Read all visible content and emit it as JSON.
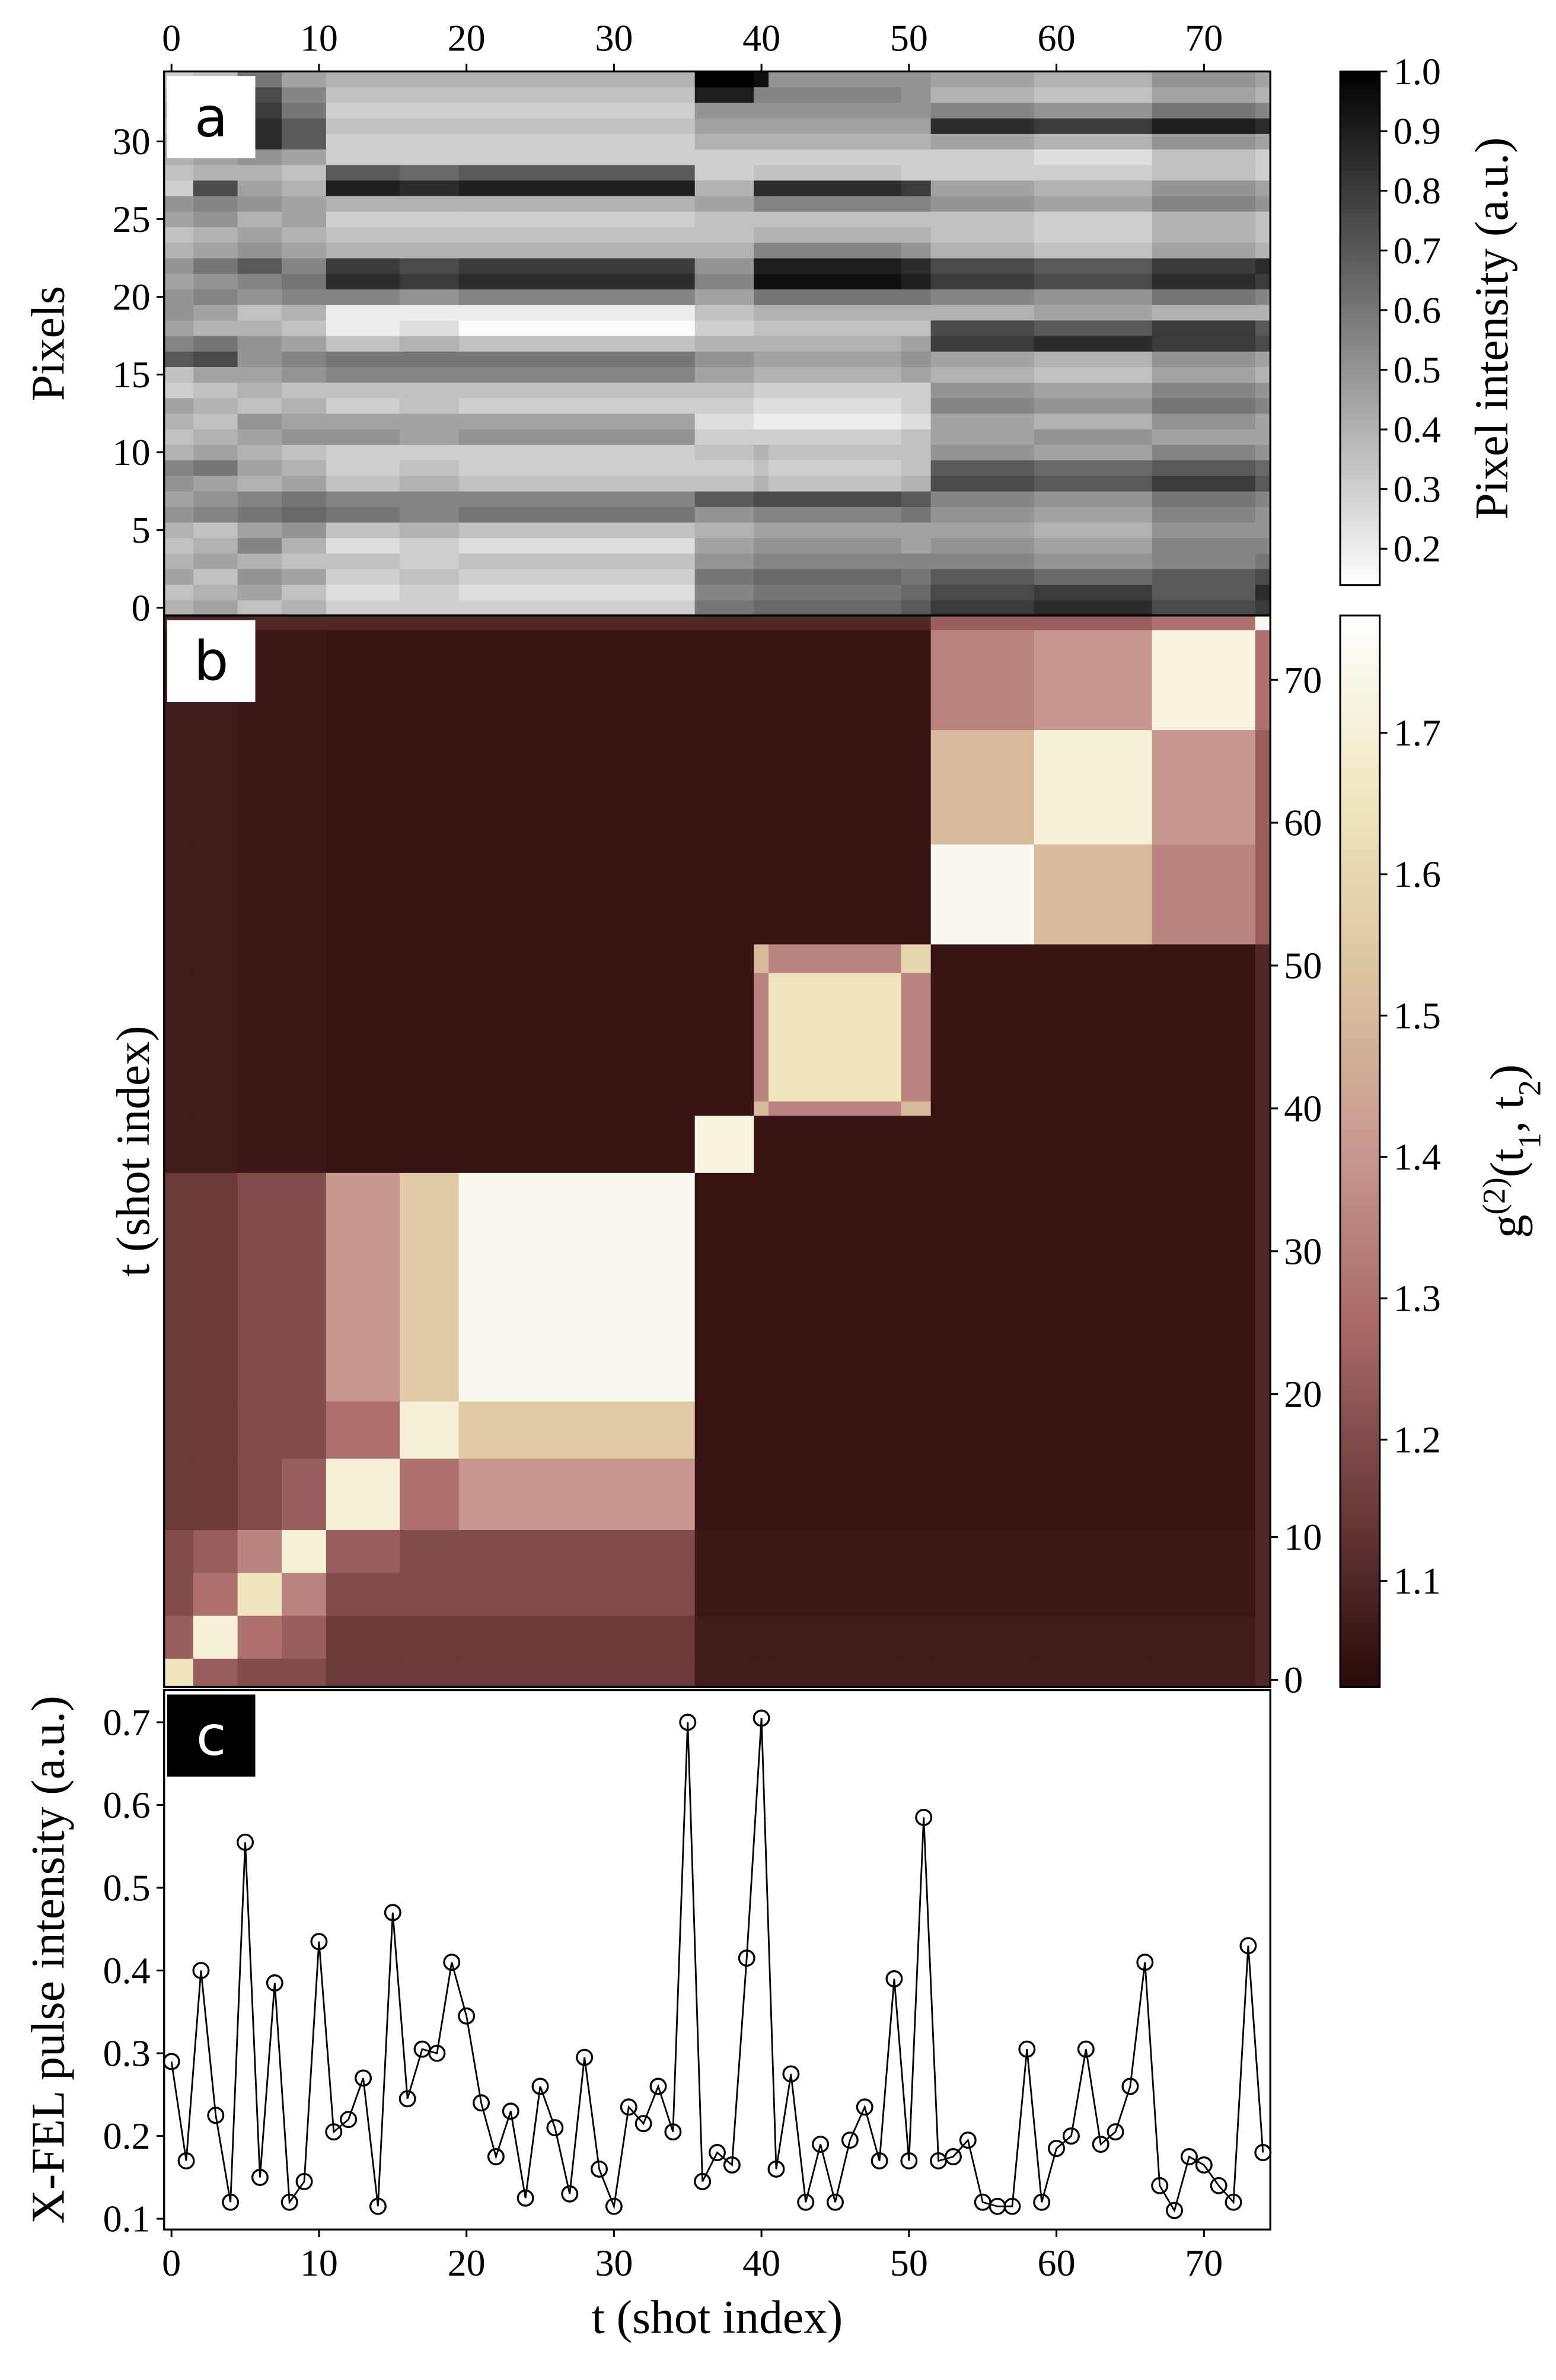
{
  "chart_data": [
    {
      "type": "heatmap",
      "panel_label": "a",
      "ylabel": "Pixels",
      "x_axis_position": "top",
      "y_axis_position": "left",
      "xlim": [
        -0.5,
        74.5
      ],
      "ylim": [
        -0.5,
        34.5
      ],
      "xticks": [
        0,
        10,
        20,
        30,
        40,
        50,
        60,
        70
      ],
      "yticks": [
        0,
        5,
        10,
        15,
        20,
        25,
        30
      ],
      "x_edges": [
        -0.5,
        1.5,
        4.5,
        7.5,
        10.5,
        15.5,
        19.5,
        35.5,
        39.5,
        40.5,
        49.5,
        51.5,
        58.5,
        66.5,
        73.5,
        74.5
      ],
      "y_edges": [
        -0.5,
        0.5,
        1.5,
        2.5,
        3.5,
        4.5,
        5.5,
        6.5,
        7.5,
        8.5,
        9.5,
        10.5,
        11.5,
        12.5,
        13.5,
        14.5,
        15.5,
        16.5,
        17.5,
        18.5,
        19.5,
        20.5,
        21.5,
        22.5,
        23.5,
        24.5,
        25.5,
        26.5,
        27.5,
        28.5,
        29.5,
        30.5,
        31.5,
        32.5,
        33.5,
        34.5
      ],
      "values": [
        [
          0.4,
          0.45,
          0.35,
          0.4,
          0.3,
          0.3,
          0.3,
          0.6,
          0.65,
          0.65,
          0.7,
          0.8,
          0.85,
          0.75,
          0.8
        ],
        [
          0.35,
          0.4,
          0.45,
          0.35,
          0.25,
          0.3,
          0.25,
          0.55,
          0.6,
          0.6,
          0.65,
          0.75,
          0.8,
          0.7,
          0.85
        ],
        [
          0.45,
          0.35,
          0.5,
          0.45,
          0.3,
          0.35,
          0.3,
          0.6,
          0.65,
          0.65,
          0.6,
          0.7,
          0.65,
          0.7,
          0.75
        ],
        [
          0.4,
          0.45,
          0.4,
          0.35,
          0.35,
          0.3,
          0.35,
          0.5,
          0.55,
          0.55,
          0.55,
          0.55,
          0.5,
          0.55,
          0.6
        ],
        [
          0.35,
          0.4,
          0.55,
          0.4,
          0.25,
          0.3,
          0.25,
          0.45,
          0.5,
          0.5,
          0.45,
          0.5,
          0.45,
          0.55,
          0.55
        ],
        [
          0.4,
          0.35,
          0.45,
          0.5,
          0.35,
          0.4,
          0.35,
          0.4,
          0.45,
          0.45,
          0.45,
          0.45,
          0.4,
          0.5,
          0.5
        ],
        [
          0.5,
          0.55,
          0.6,
          0.65,
          0.6,
          0.55,
          0.6,
          0.5,
          0.55,
          0.55,
          0.6,
          0.5,
          0.45,
          0.55,
          0.5
        ],
        [
          0.45,
          0.5,
          0.55,
          0.6,
          0.55,
          0.55,
          0.55,
          0.7,
          0.75,
          0.75,
          0.7,
          0.55,
          0.5,
          0.6,
          0.55
        ],
        [
          0.5,
          0.45,
          0.4,
          0.45,
          0.35,
          0.4,
          0.35,
          0.35,
          0.4,
          0.35,
          0.4,
          0.75,
          0.7,
          0.8,
          0.7
        ],
        [
          0.55,
          0.6,
          0.45,
          0.4,
          0.3,
          0.35,
          0.3,
          0.3,
          0.35,
          0.3,
          0.35,
          0.7,
          0.65,
          0.7,
          0.65
        ],
        [
          0.4,
          0.45,
          0.4,
          0.35,
          0.3,
          0.3,
          0.3,
          0.35,
          0.4,
          0.35,
          0.35,
          0.5,
          0.45,
          0.55,
          0.5
        ],
        [
          0.35,
          0.4,
          0.45,
          0.5,
          0.5,
          0.45,
          0.5,
          0.3,
          0.3,
          0.3,
          0.35,
          0.45,
          0.5,
          0.45,
          0.45
        ],
        [
          0.4,
          0.35,
          0.5,
          0.45,
          0.45,
          0.45,
          0.45,
          0.25,
          0.2,
          0.2,
          0.25,
          0.45,
          0.4,
          0.5,
          0.45
        ],
        [
          0.45,
          0.4,
          0.35,
          0.4,
          0.3,
          0.35,
          0.3,
          0.3,
          0.25,
          0.25,
          0.3,
          0.55,
          0.5,
          0.6,
          0.55
        ],
        [
          0.3,
          0.35,
          0.4,
          0.35,
          0.35,
          0.35,
          0.35,
          0.35,
          0.3,
          0.3,
          0.3,
          0.5,
          0.45,
          0.55,
          0.5
        ],
        [
          0.35,
          0.45,
          0.45,
          0.5,
          0.55,
          0.55,
          0.55,
          0.45,
          0.4,
          0.4,
          0.45,
          0.4,
          0.35,
          0.45,
          0.4
        ],
        [
          0.7,
          0.75,
          0.5,
          0.55,
          0.6,
          0.6,
          0.6,
          0.5,
          0.45,
          0.45,
          0.5,
          0.45,
          0.4,
          0.5,
          0.45
        ],
        [
          0.55,
          0.6,
          0.5,
          0.45,
          0.35,
          0.4,
          0.35,
          0.4,
          0.4,
          0.4,
          0.45,
          0.8,
          0.85,
          0.8,
          0.75
        ],
        [
          0.45,
          0.4,
          0.4,
          0.35,
          0.2,
          0.25,
          0.15,
          0.3,
          0.35,
          0.35,
          0.35,
          0.75,
          0.7,
          0.8,
          0.7
        ],
        [
          0.5,
          0.45,
          0.35,
          0.4,
          0.2,
          0.2,
          0.2,
          0.35,
          0.4,
          0.4,
          0.4,
          0.4,
          0.45,
          0.4,
          0.4
        ],
        [
          0.5,
          0.55,
          0.5,
          0.55,
          0.55,
          0.5,
          0.55,
          0.45,
          0.6,
          0.6,
          0.6,
          0.55,
          0.5,
          0.6,
          0.55
        ],
        [
          0.45,
          0.5,
          0.55,
          0.6,
          0.85,
          0.8,
          0.85,
          0.55,
          0.95,
          0.95,
          0.9,
          0.8,
          0.75,
          0.85,
          0.8
        ],
        [
          0.5,
          0.6,
          0.7,
          0.55,
          0.8,
          0.75,
          0.8,
          0.5,
          0.9,
          0.9,
          0.85,
          0.75,
          0.7,
          0.8,
          0.85
        ],
        [
          0.4,
          0.45,
          0.5,
          0.45,
          0.4,
          0.4,
          0.4,
          0.4,
          0.55,
          0.55,
          0.5,
          0.4,
          0.35,
          0.45,
          0.4
        ],
        [
          0.35,
          0.4,
          0.45,
          0.4,
          0.35,
          0.35,
          0.35,
          0.35,
          0.4,
          0.4,
          0.4,
          0.35,
          0.3,
          0.4,
          0.35
        ],
        [
          0.45,
          0.5,
          0.4,
          0.45,
          0.3,
          0.3,
          0.3,
          0.35,
          0.35,
          0.35,
          0.35,
          0.35,
          0.3,
          0.4,
          0.35
        ],
        [
          0.5,
          0.55,
          0.5,
          0.45,
          0.4,
          0.4,
          0.4,
          0.45,
          0.55,
          0.55,
          0.55,
          0.5,
          0.45,
          0.55,
          0.5
        ],
        [
          0.3,
          0.75,
          0.45,
          0.4,
          0.9,
          0.85,
          0.9,
          0.4,
          0.85,
          0.85,
          0.8,
          0.45,
          0.4,
          0.5,
          0.45
        ],
        [
          0.35,
          0.4,
          0.4,
          0.35,
          0.7,
          0.65,
          0.7,
          0.3,
          0.35,
          0.35,
          0.3,
          0.3,
          0.3,
          0.35,
          0.3
        ],
        [
          0.4,
          0.45,
          0.5,
          0.45,
          0.3,
          0.3,
          0.3,
          0.3,
          0.3,
          0.3,
          0.3,
          0.3,
          0.25,
          0.35,
          0.3
        ],
        [
          0.4,
          0.45,
          0.85,
          0.7,
          0.3,
          0.3,
          0.3,
          0.4,
          0.4,
          0.4,
          0.4,
          0.45,
          0.4,
          0.5,
          0.45
        ],
        [
          0.35,
          0.4,
          0.85,
          0.7,
          0.35,
          0.35,
          0.35,
          0.45,
          0.45,
          0.45,
          0.45,
          0.85,
          0.8,
          0.9,
          0.85
        ],
        [
          0.4,
          0.45,
          0.8,
          0.6,
          0.3,
          0.3,
          0.3,
          0.5,
          0.5,
          0.5,
          0.5,
          0.55,
          0.5,
          0.6,
          0.55
        ],
        [
          0.35,
          0.4,
          0.75,
          0.55,
          0.35,
          0.35,
          0.35,
          0.9,
          0.55,
          0.55,
          0.5,
          0.4,
          0.35,
          0.45,
          0.4
        ],
        [
          0.3,
          0.35,
          0.6,
          0.45,
          0.4,
          0.4,
          0.4,
          1.0,
          0.95,
          0.5,
          0.5,
          0.45,
          0.4,
          0.5,
          0.45
        ]
      ],
      "colormap": [
        "#ffffff",
        "#000000"
      ],
      "colorbar": {
        "label": "Pixel intensity (a.u.)",
        "lim": [
          0.139,
          1.0
        ],
        "ticks": [
          0.2,
          0.3,
          0.4,
          0.5,
          0.6,
          0.7,
          0.8,
          0.9,
          {
            "value": 1,
            "label": "1.0"
          }
        ]
      }
    },
    {
      "type": "heatmap",
      "panel_label": "b",
      "ylabel": "t (shot index)",
      "y_axis_position": "right",
      "xlim": [
        -0.5,
        74.5
      ],
      "ylim": [
        -0.5,
        74.5
      ],
      "yticks": [
        0,
        10,
        20,
        30,
        40,
        50,
        60,
        70
      ],
      "x_edges": [
        -0.5,
        1.5,
        4.5,
        7.5,
        10.5,
        15.5,
        19.5,
        35.5,
        39.5,
        40.5,
        49.5,
        51.5,
        58.5,
        66.5,
        73.5,
        74.5
      ],
      "y_edges": [
        -0.5,
        1.5,
        4.5,
        7.5,
        10.5,
        15.5,
        19.5,
        35.5,
        39.5,
        40.5,
        49.5,
        51.5,
        58.5,
        66.5,
        73.5,
        74.5
      ],
      "values": [
        [
          1.65,
          1.25,
          1.2,
          1.2,
          1.15,
          1.15,
          1.15,
          1.07,
          1.07,
          1.07,
          1.07,
          1.07,
          1.07,
          1.07,
          1.1
        ],
        [
          1.25,
          1.7,
          1.3,
          1.25,
          1.15,
          1.15,
          1.15,
          1.07,
          1.07,
          1.07,
          1.07,
          1.07,
          1.07,
          1.07,
          1.1
        ],
        [
          1.2,
          1.3,
          1.65,
          1.35,
          1.2,
          1.2,
          1.2,
          1.06,
          1.06,
          1.06,
          1.06,
          1.06,
          1.06,
          1.06,
          1.1
        ],
        [
          1.2,
          1.25,
          1.35,
          1.7,
          1.25,
          1.2,
          1.2,
          1.06,
          1.06,
          1.06,
          1.06,
          1.06,
          1.06,
          1.06,
          1.1
        ],
        [
          1.15,
          1.15,
          1.2,
          1.25,
          1.7,
          1.3,
          1.4,
          1.05,
          1.05,
          1.05,
          1.05,
          1.05,
          1.05,
          1.05,
          1.1
        ],
        [
          1.15,
          1.15,
          1.2,
          1.2,
          1.3,
          1.7,
          1.55,
          1.05,
          1.05,
          1.05,
          1.05,
          1.05,
          1.05,
          1.05,
          1.1
        ],
        [
          1.15,
          1.15,
          1.2,
          1.2,
          1.4,
          1.55,
          1.75,
          1.05,
          1.05,
          1.05,
          1.05,
          1.05,
          1.05,
          1.05,
          1.1
        ],
        [
          1.07,
          1.07,
          1.06,
          1.06,
          1.05,
          1.05,
          1.05,
          1.72,
          1.05,
          1.05,
          1.05,
          1.05,
          1.05,
          1.05,
          1.1
        ],
        [
          1.07,
          1.07,
          1.06,
          1.06,
          1.05,
          1.05,
          1.05,
          1.05,
          1.5,
          1.35,
          1.5,
          1.05,
          1.05,
          1.05,
          1.1
        ],
        [
          1.07,
          1.07,
          1.06,
          1.06,
          1.05,
          1.05,
          1.05,
          1.05,
          1.35,
          1.65,
          1.35,
          1.05,
          1.05,
          1.05,
          1.1
        ],
        [
          1.07,
          1.07,
          1.06,
          1.06,
          1.05,
          1.05,
          1.05,
          1.05,
          1.5,
          1.35,
          1.6,
          1.05,
          1.05,
          1.05,
          1.1
        ],
        [
          1.07,
          1.07,
          1.06,
          1.06,
          1.05,
          1.05,
          1.05,
          1.05,
          1.05,
          1.05,
          1.05,
          1.75,
          1.5,
          1.35,
          1.25
        ],
        [
          1.07,
          1.07,
          1.06,
          1.06,
          1.05,
          1.05,
          1.05,
          1.05,
          1.05,
          1.05,
          1.05,
          1.5,
          1.7,
          1.4,
          1.25
        ],
        [
          1.07,
          1.07,
          1.06,
          1.06,
          1.05,
          1.05,
          1.05,
          1.05,
          1.05,
          1.05,
          1.05,
          1.35,
          1.4,
          1.72,
          1.3
        ],
        [
          1.1,
          1.1,
          1.1,
          1.1,
          1.1,
          1.1,
          1.1,
          1.1,
          1.1,
          1.1,
          1.1,
          1.25,
          1.25,
          1.3,
          1.75
        ]
      ],
      "colormap": [
        "#2a0a0a",
        "#6b3a3a",
        "#a86868",
        "#c89890",
        "#dcc4a0",
        "#f0e8c0",
        "#ffffff"
      ],
      "colorbar": {
        "label": [
          "g",
          "(2)",
          "(t",
          "1",
          ", t",
          "2",
          ")"
        ],
        "lim": [
          1.025,
          1.783
        ],
        "ticks": [
          1.1,
          1.2,
          1.3,
          1.4,
          1.5,
          1.6,
          1.7
        ]
      }
    },
    {
      "type": "line",
      "panel_label": "c",
      "xlabel": "t (shot index)",
      "ylabel": "X-FEL pulse intensity (a.u.)",
      "xlim": [
        -0.5,
        74.5
      ],
      "ylim": [
        0.087,
        0.739
      ],
      "xticks": [
        0,
        10,
        20,
        30,
        40,
        50,
        60,
        70
      ],
      "yticks": [
        0.1,
        0.2,
        0.3,
        0.4,
        0.5,
        0.6,
        0.7
      ],
      "color": "#000000",
      "marker": "open-circle",
      "x": [
        0,
        1,
        2,
        3,
        4,
        5,
        6,
        7,
        8,
        9,
        10,
        11,
        12,
        13,
        14,
        15,
        16,
        17,
        18,
        19,
        20,
        21,
        22,
        23,
        24,
        25,
        26,
        27,
        28,
        29,
        30,
        31,
        32,
        33,
        34,
        35,
        36,
        37,
        38,
        39,
        40,
        41,
        42,
        43,
        44,
        45,
        46,
        47,
        48,
        49,
        50,
        51,
        52,
        53,
        54,
        55,
        56,
        57,
        58,
        59,
        60,
        61,
        62,
        63,
        64,
        65,
        66,
        67,
        68,
        69,
        70,
        71,
        72,
        73,
        74
      ],
      "values": [
        0.29,
        0.17,
        0.4,
        0.225,
        0.12,
        0.555,
        0.15,
        0.385,
        0.12,
        0.145,
        0.435,
        0.205,
        0.22,
        0.27,
        0.115,
        0.47,
        0.245,
        0.305,
        0.3,
        0.41,
        0.345,
        0.24,
        0.175,
        0.23,
        0.125,
        0.26,
        0.21,
        0.13,
        0.295,
        0.16,
        0.115,
        0.235,
        0.215,
        0.26,
        0.205,
        0.7,
        0.145,
        0.18,
        0.165,
        0.415,
        0.705,
        0.16,
        0.275,
        0.12,
        0.19,
        0.12,
        0.195,
        0.235,
        0.17,
        0.39,
        0.17,
        0.585,
        0.17,
        0.175,
        0.195,
        0.12,
        0.115,
        0.115,
        0.305,
        0.12,
        0.185,
        0.2,
        0.305,
        0.19,
        0.205,
        0.26,
        0.41,
        0.14,
        0.11,
        0.175,
        0.165,
        0.14,
        0.12,
        0.43,
        0.18
      ]
    }
  ]
}
